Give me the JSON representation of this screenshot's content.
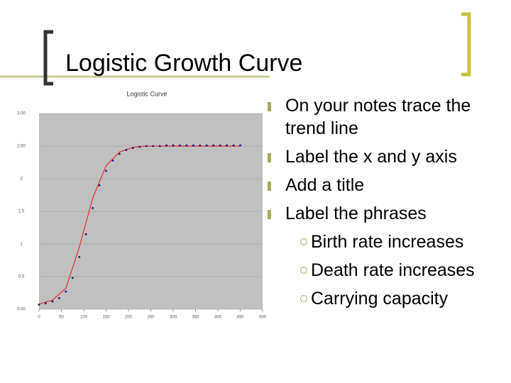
{
  "header": {
    "title": "Logistic Growth Curve"
  },
  "bullets": [
    {
      "text": "On your notes trace the trend line"
    },
    {
      "text": "Label the x and y axis"
    },
    {
      "text": "Add a title"
    },
    {
      "text": "Label the phrases",
      "sub": [
        "Birth rate increases",
        "Death rate increases",
        "Carrying capacity"
      ]
    }
  ],
  "chart_data": {
    "type": "line",
    "title": "Logistic Curve",
    "xlim": [
      0,
      500
    ],
    "xticks": [
      0,
      50,
      100,
      150,
      200,
      250,
      300,
      350,
      400,
      450,
      500
    ],
    "ylim": [
      0,
      3
    ],
    "yticks": [
      {
        "value": 0,
        "label": "0.00"
      },
      0.5,
      1,
      1.5,
      2,
      {
        "value": 2.5,
        "label": "2.50"
      },
      {
        "value": 3,
        "label": "3.00"
      }
    ],
    "grid": true,
    "series": [
      {
        "color": "#e03030",
        "style": "line",
        "x": [
          0,
          30,
          60,
          90,
          120,
          150,
          180,
          210,
          240,
          270,
          300,
          330,
          360,
          390,
          420,
          450
        ],
        "values": [
          0.08,
          0.14,
          0.32,
          0.95,
          1.7,
          2.2,
          2.41,
          2.48,
          2.5,
          2.5,
          2.5,
          2.5,
          2.5,
          2.5,
          2.5,
          2.5
        ]
      },
      {
        "color": "#1a1a7a",
        "style": "dots",
        "x": [
          0,
          15,
          30,
          45,
          60,
          75,
          90,
          105,
          120,
          135,
          150,
          165,
          180,
          195,
          210,
          225,
          240,
          255,
          270,
          285,
          300,
          315,
          330,
          345,
          360,
          375,
          390,
          405,
          420,
          435,
          450
        ],
        "values": [
          0.07,
          0.09,
          0.12,
          0.17,
          0.27,
          0.48,
          0.8,
          1.15,
          1.55,
          1.9,
          2.12,
          2.28,
          2.38,
          2.44,
          2.47,
          2.49,
          2.5,
          2.5,
          2.5,
          2.51,
          2.51,
          2.51,
          2.51,
          2.51,
          2.51,
          2.51,
          2.51,
          2.51,
          2.51,
          2.51,
          2.51
        ]
      }
    ]
  }
}
